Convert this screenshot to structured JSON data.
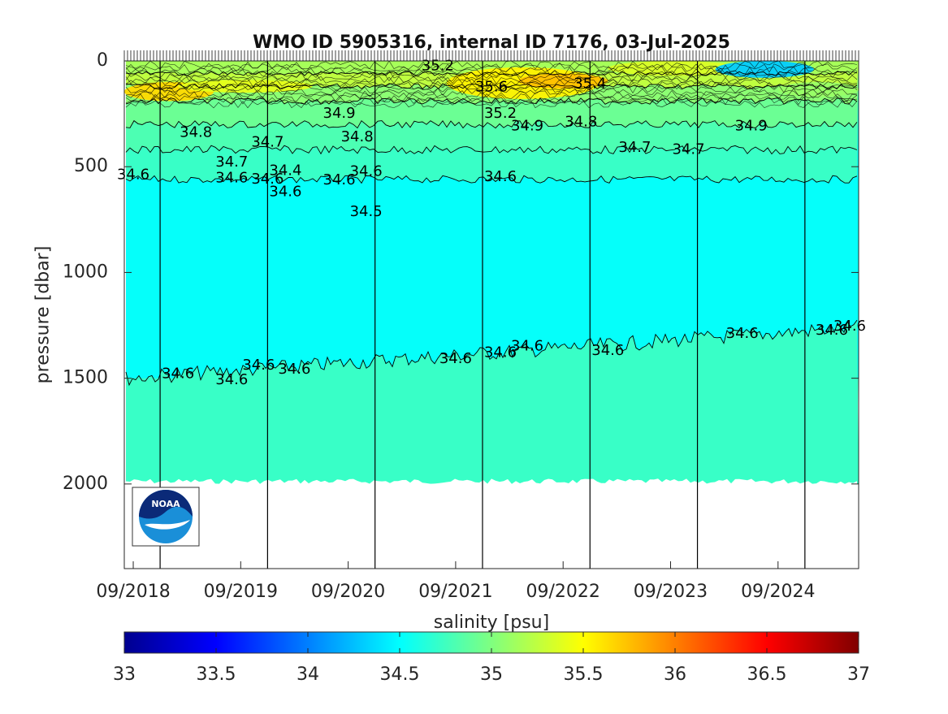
{
  "chart_data": {
    "type": "heatmap",
    "title": "WMO ID 5905316, internal ID 7176, 03-Jul-2025",
    "ylabel": "pressure [dbar]",
    "colorbar_label": "salinity [psu]",
    "x_ticks": [
      "09/2018",
      "09/2019",
      "09/2020",
      "09/2021",
      "09/2022",
      "09/2023",
      "09/2024"
    ],
    "x_range": [
      "2018-08",
      "2025-06"
    ],
    "y_ticks": [
      0,
      500,
      1000,
      1500,
      2000
    ],
    "y_range": [
      0,
      2400
    ],
    "y_reversed": true,
    "colorbar_ticks": [
      33,
      33.5,
      34,
      34.5,
      35,
      35.5,
      36,
      36.5,
      37
    ],
    "colorbar_range": [
      33,
      37
    ],
    "colormap": "jet",
    "contour_labels": [
      {
        "label": "34.9",
        "date": "2020-08",
        "pressure": 250
      },
      {
        "label": "34.8",
        "date": "2019-04",
        "pressure": 340
      },
      {
        "label": "34.8",
        "date": "2020-10",
        "pressure": 360
      },
      {
        "label": "34.7",
        "date": "2019-12",
        "pressure": 385
      },
      {
        "label": "34.7",
        "date": "2019-08",
        "pressure": 480
      },
      {
        "label": "34.9",
        "date": "2022-05",
        "pressure": 310
      },
      {
        "label": "34.8",
        "date": "2022-11",
        "pressure": 290
      },
      {
        "label": "34.7",
        "date": "2023-05",
        "pressure": 410
      },
      {
        "label": "34.7",
        "date": "2023-11",
        "pressure": 420
      },
      {
        "label": "34.9",
        "date": "2024-06",
        "pressure": 310
      },
      {
        "label": "34.6",
        "date": "2018-09",
        "pressure": 540
      },
      {
        "label": "34.6",
        "date": "2019-08",
        "pressure": 555
      },
      {
        "label": "34.6",
        "date": "2019-12",
        "pressure": 560
      },
      {
        "label": "34.4",
        "date": "2020-02",
        "pressure": 520
      },
      {
        "label": "34.6",
        "date": "2020-02",
        "pressure": 620
      },
      {
        "label": "34.6",
        "date": "2020-08",
        "pressure": 565
      },
      {
        "label": "34.6",
        "date": "2020-11",
        "pressure": 525
      },
      {
        "label": "34.5",
        "date": "2020-11",
        "pressure": 715
      },
      {
        "label": "34.6",
        "date": "2022-02",
        "pressure": 550
      },
      {
        "label": "34.6",
        "date": "2019-02",
        "pressure": 1480
      },
      {
        "label": "34.6",
        "date": "2019-08",
        "pressure": 1510
      },
      {
        "label": "34.6",
        "date": "2019-11",
        "pressure": 1440
      },
      {
        "label": "34.6",
        "date": "2020-03",
        "pressure": 1460
      },
      {
        "label": "34.6",
        "date": "2021-09",
        "pressure": 1410
      },
      {
        "label": "34.6",
        "date": "2022-02",
        "pressure": 1380
      },
      {
        "label": "34.6",
        "date": "2022-05",
        "pressure": 1350
      },
      {
        "label": "34.6",
        "date": "2023-02",
        "pressure": 1370
      },
      {
        "label": "34.6",
        "date": "2024-05",
        "pressure": 1290
      },
      {
        "label": "34.6",
        "date": "2025-03",
        "pressure": 1275
      },
      {
        "label": "34.6",
        "date": "2025-05",
        "pressure": 1255
      },
      {
        "label": "35.4",
        "date": "2022-12",
        "pressure": 110
      },
      {
        "label": "35.6",
        "date": "2022-01",
        "pressure": 125
      },
      {
        "label": "35.2",
        "date": "2021-07",
        "pressure": 25
      },
      {
        "label": "35.2",
        "date": "2022-02",
        "pressure": 250
      }
    ],
    "profile_dividers": [
      "2018-12",
      "2019-12",
      "2020-12",
      "2021-12",
      "2022-12",
      "2023-12",
      "2024-12"
    ]
  },
  "logo": {
    "text": "NOAA"
  }
}
